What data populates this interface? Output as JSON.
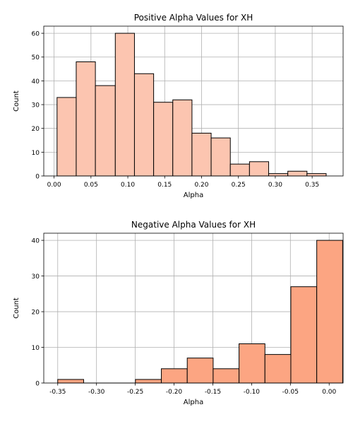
{
  "chart_data": [
    {
      "type": "bar",
      "title": "Positive Alpha Values for XH",
      "xlabel": "Alpha",
      "ylabel": "Count",
      "xlim": [
        -0.014,
        0.392
      ],
      "ylim": [
        0,
        63
      ],
      "xticks": [
        "0.00",
        "0.05",
        "0.10",
        "0.15",
        "0.20",
        "0.25",
        "0.30",
        "0.35"
      ],
      "yticks": [
        "0",
        "10",
        "20",
        "30",
        "40",
        "50",
        "60"
      ],
      "grid": true,
      "bar_color": "#fcc5b0",
      "edge_color": "#000000",
      "bins": [
        {
          "x0": 0.004,
          "x1": 0.03,
          "count": 33
        },
        {
          "x0": 0.03,
          "x1": 0.056,
          "count": 48
        },
        {
          "x0": 0.056,
          "x1": 0.083,
          "count": 38
        },
        {
          "x0": 0.083,
          "x1": 0.109,
          "count": 60
        },
        {
          "x0": 0.109,
          "x1": 0.135,
          "count": 43
        },
        {
          "x0": 0.135,
          "x1": 0.161,
          "count": 31
        },
        {
          "x0": 0.161,
          "x1": 0.187,
          "count": 32
        },
        {
          "x0": 0.187,
          "x1": 0.213,
          "count": 18
        },
        {
          "x0": 0.213,
          "x1": 0.239,
          "count": 16
        },
        {
          "x0": 0.239,
          "x1": 0.265,
          "count": 5
        },
        {
          "x0": 0.265,
          "x1": 0.291,
          "count": 6
        },
        {
          "x0": 0.291,
          "x1": 0.317,
          "count": 1
        },
        {
          "x0": 0.317,
          "x1": 0.343,
          "count": 2
        },
        {
          "x0": 0.343,
          "x1": 0.369,
          "count": 1
        }
      ]
    },
    {
      "type": "bar",
      "title": "Negative Alpha Values for XH",
      "xlabel": "Alpha",
      "ylabel": "Count",
      "xlim": [
        -0.368,
        0.018
      ],
      "ylim": [
        0,
        42
      ],
      "xticks": [
        "-0.35",
        "-0.30",
        "-0.25",
        "-0.20",
        "-0.15",
        "-0.10",
        "-0.05",
        "0.00"
      ],
      "yticks": [
        "0",
        "10",
        "20",
        "30",
        "40"
      ],
      "grid": true,
      "bar_color": "#fca582",
      "edge_color": "#000000",
      "bins": [
        {
          "x0": -0.35,
          "x1": -0.3166,
          "count": 1
        },
        {
          "x0": -0.3166,
          "x1": -0.2832,
          "count": 0
        },
        {
          "x0": -0.2832,
          "x1": -0.2498,
          "count": 0
        },
        {
          "x0": -0.2498,
          "x1": -0.2164,
          "count": 1
        },
        {
          "x0": -0.2164,
          "x1": -0.183,
          "count": 4
        },
        {
          "x0": -0.183,
          "x1": -0.1496,
          "count": 7
        },
        {
          "x0": -0.1496,
          "x1": -0.1162,
          "count": 4
        },
        {
          "x0": -0.1162,
          "x1": -0.0828,
          "count": 11
        },
        {
          "x0": -0.0828,
          "x1": -0.0494,
          "count": 8
        },
        {
          "x0": -0.0494,
          "x1": -0.016,
          "count": 27
        },
        {
          "x0": -0.016,
          "x1": 0.0174,
          "count": 40
        }
      ]
    }
  ]
}
